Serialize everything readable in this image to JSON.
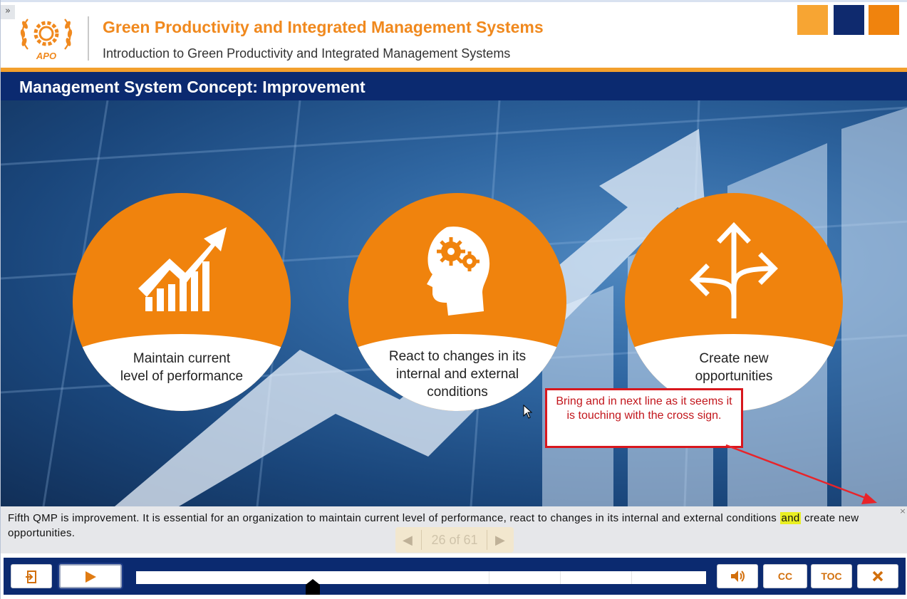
{
  "header": {
    "expand_glyph": "»",
    "logo_text": "APO",
    "course_title": "Green Productivity and Integrated Management Systems",
    "course_subtitle": "Introduction to Green Productivity and Integrated Management Systems",
    "brand_colors": [
      "#f7a533",
      "#0f2a6e",
      "#f0830d"
    ]
  },
  "slide": {
    "title": "Management System Concept: Improvement",
    "circles": [
      {
        "label_line1": "Maintain current",
        "label_line2": "level of performance",
        "icon": "growth-chart-icon"
      },
      {
        "label_line1": "React to changes in its",
        "label_line2": "internal and external",
        "label_line3": "conditions",
        "icon": "head-gears-icon"
      },
      {
        "label_line1": "Create new",
        "label_line2": "opportunities",
        "icon": "branching-arrows-icon"
      }
    ],
    "accent_color": "#f0830d"
  },
  "annotation": {
    "callout_text": "Bring and in next line as it seems it is touching with the cross sign.",
    "color": "#d8171d"
  },
  "caption": {
    "text_before": "Fifth QMP is improvement. It is essential for an organization to maintain current level of performance, react to changes in its internal and external conditions ",
    "highlight": "and",
    "text_after": " create new opportunities.",
    "close_glyph": "×"
  },
  "pager": {
    "prev_glyph": "◀",
    "next_glyph": "▶",
    "count": "26 of 61"
  },
  "controls": {
    "exit_icon": "exit-icon",
    "play_icon": "play-icon",
    "progress_fraction": 0.43,
    "volume_icon": "volume-icon",
    "cc_label": "CC",
    "toc_label": "TOC",
    "close_icon": "close-icon"
  }
}
